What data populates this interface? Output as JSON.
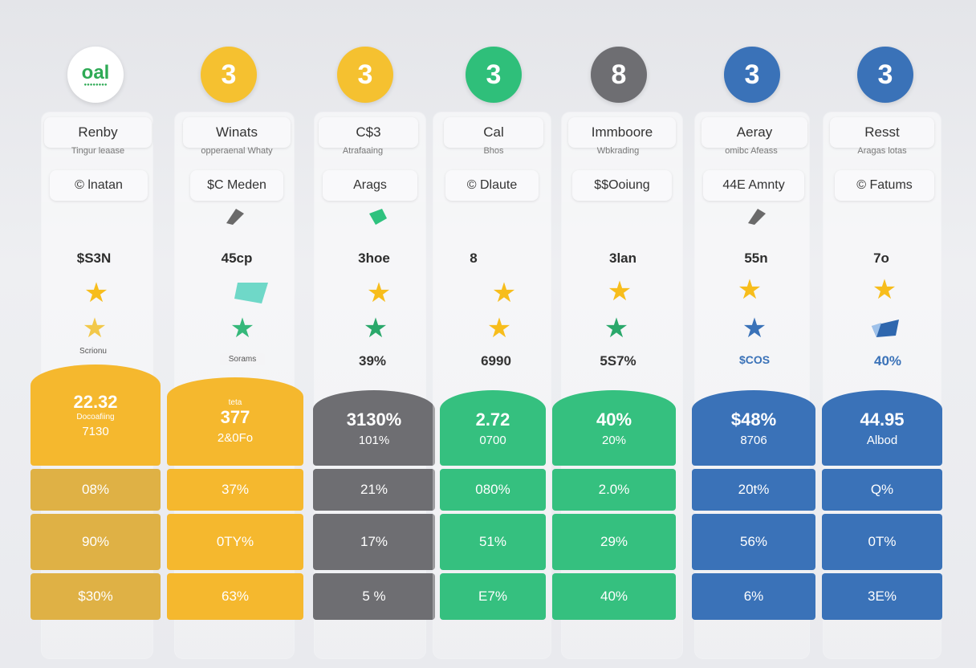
{
  "columns": [
    {
      "logo": "oal",
      "logo_sub": "●●●●●●●●",
      "title": "Renby",
      "subtitle": "Tingur leaase",
      "tag": "© lnatan",
      "price": "$S3N",
      "small_label": "Scrionu",
      "pct": "",
      "card_big": "22.32",
      "card_small": "Docoafiing",
      "card_mid": "7130",
      "rows": [
        "08%",
        "90%",
        "$30%"
      ],
      "accent": "#f5b82e",
      "row_color": "#dfb145"
    },
    {
      "logo": "3",
      "title": "Winats",
      "subtitle": "opperaenal Whaty",
      "tag": "$C Meden",
      "price": "45cp",
      "small_label": "Sorams",
      "pct": "",
      "card_big": "377",
      "card_small": "teta",
      "card_mid": "2&0Fo",
      "rows": [
        "37%",
        "0TY%",
        "63%"
      ],
      "accent": "#f5b82e",
      "row_color": "#f5b82e"
    },
    {
      "logo": "3",
      "title": "C$3",
      "subtitle": "Atrafaaing",
      "tag": "Arags",
      "price": "3hoe",
      "small_label": "",
      "pct": "39%",
      "card_big": "3130%",
      "card_small": "",
      "card_mid": "101%",
      "rows": [
        "21%",
        "17%",
        "5 %"
      ],
      "accent": "#6e6e72",
      "row_color": "#6e6e72"
    },
    {
      "logo": "3",
      "title": "Cal",
      "subtitle": "Bhos",
      "tag": "© Dlaute",
      "price": "8",
      "small_label": "",
      "pct": "6990",
      "card_big": "2.72",
      "card_small": "",
      "card_mid": "0700",
      "rows": [
        "080%",
        "51%",
        "E7%"
      ],
      "accent": "#35c07f",
      "row_color": "#35c07f"
    },
    {
      "logo": "8",
      "title": "Immboore",
      "subtitle": "Wbkrading",
      "tag": "$$Ooiung",
      "price": "3lan",
      "small_label": "",
      "pct": "5S7%",
      "card_big": "40%",
      "card_small": "",
      "card_mid": "20%",
      "rows": [
        "2.0%",
        "29%",
        "40%"
      ],
      "accent": "#35c07f",
      "row_color": "#35c07f"
    },
    {
      "logo": "3",
      "title": "Aeray",
      "subtitle": "omibc Afeass",
      "tag": "44E Amnty",
      "price": "55n",
      "small_label": "",
      "pct": "$COS",
      "card_big": "$48%",
      "card_small": "",
      "card_mid": "8706",
      "rows": [
        "20t%",
        "56%",
        "6%"
      ],
      "accent": "#3a72b8",
      "row_color": "#3a72b8"
    },
    {
      "logo": "3",
      "title": "Resst",
      "subtitle": "Aragas lotas",
      "tag": "© Fatums",
      "price": "7o",
      "small_label": "",
      "pct": "40%",
      "card_big": "44.95",
      "card_small": "",
      "card_mid": "Albod",
      "rows": [
        "Q%",
        "0T%",
        "3E%"
      ],
      "accent": "#3a72b8",
      "row_color": "#3a72b8"
    }
  ],
  "colors": {
    "yellow": "#f5b82e",
    "gray": "#6e6e72",
    "green": "#35c07f",
    "blue": "#3a72b8",
    "star": "#f7bd1c"
  },
  "icons": [
    "star-icon",
    "arrow-icon"
  ]
}
